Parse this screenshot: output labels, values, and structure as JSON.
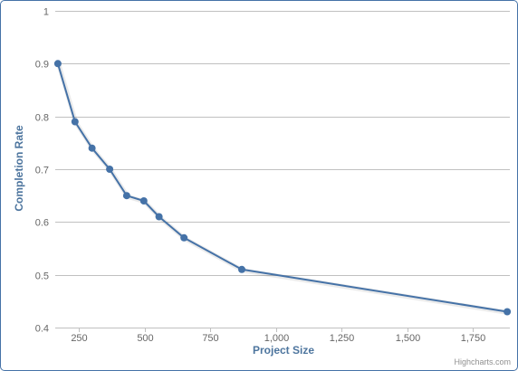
{
  "chart_data": {
    "type": "line",
    "title": "",
    "xlabel": "Project Size",
    "ylabel": "Completion Rate",
    "xlim": [
      160,
      1890
    ],
    "ylim": [
      0.4,
      1
    ],
    "x_ticks": [
      250,
      500,
      750,
      1000,
      1250,
      1500,
      1750
    ],
    "x_tick_labels": [
      "250",
      "500",
      "750",
      "1,000",
      "1,250",
      "1,500",
      "1,750"
    ],
    "y_ticks": [
      0.4,
      0.5,
      0.6,
      0.7,
      0.8,
      0.9,
      1
    ],
    "y_tick_labels": [
      "0.4",
      "0.5",
      "0.6",
      "0.7",
      "0.8",
      "0.9",
      "1"
    ],
    "grid": true,
    "legend": "none",
    "series": [
      {
        "color": "#4572a7",
        "points": [
          {
            "x": 170,
            "y": 0.9
          },
          {
            "x": 235,
            "y": 0.79
          },
          {
            "x": 300,
            "y": 0.74
          },
          {
            "x": 367,
            "y": 0.7
          },
          {
            "x": 432,
            "y": 0.65
          },
          {
            "x": 497,
            "y": 0.64
          },
          {
            "x": 555,
            "y": 0.61
          },
          {
            "x": 650,
            "y": 0.57
          },
          {
            "x": 870,
            "y": 0.51
          },
          {
            "x": 1880,
            "y": 0.43
          }
        ]
      }
    ],
    "credits": "Highcharts.com"
  },
  "colors": {
    "series": "#4572a7",
    "grid": "#c0c0c0",
    "axis_title": "#4d759e",
    "tick_label": "#666666",
    "frame": "#4572a7"
  }
}
